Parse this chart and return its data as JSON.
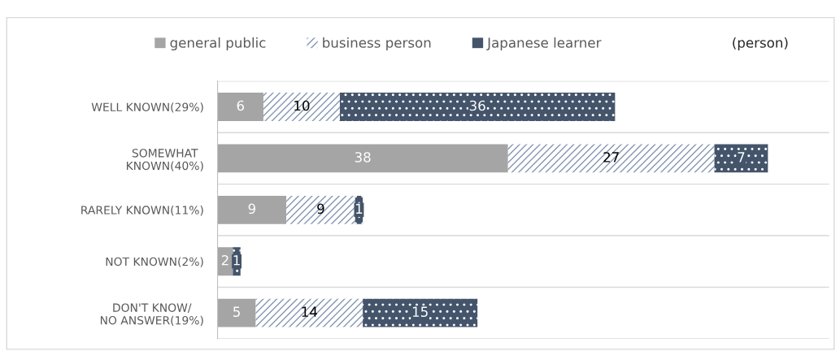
{
  "chart_data": {
    "type": "bar",
    "orientation": "horizontal",
    "stacked": true,
    "categories": [
      "WELL KNOWN(29%)",
      "SOMEWHAT\nKNOWN(40%)",
      "RARELY KNOWN(11%)",
      "NOT KNOWN(2%)",
      "DON'T KNOW/\nNO ANSWER(19%)"
    ],
    "series": [
      {
        "name": "general public",
        "color": "#a5a5a5",
        "values": [
          6,
          38,
          9,
          2,
          5
        ]
      },
      {
        "name": "business person",
        "color": "#8497b0",
        "values": [
          10,
          27,
          9,
          null,
          14
        ]
      },
      {
        "name": "Japanese learner",
        "color": "#44546a",
        "values": [
          36,
          7,
          1,
          1,
          15
        ]
      }
    ],
    "xlim": [
      0,
      80
    ],
    "tick_labels": "y",
    "data_labels": true,
    "grid": "y",
    "legend": "top",
    "annotations": [
      "(person)"
    ]
  }
}
